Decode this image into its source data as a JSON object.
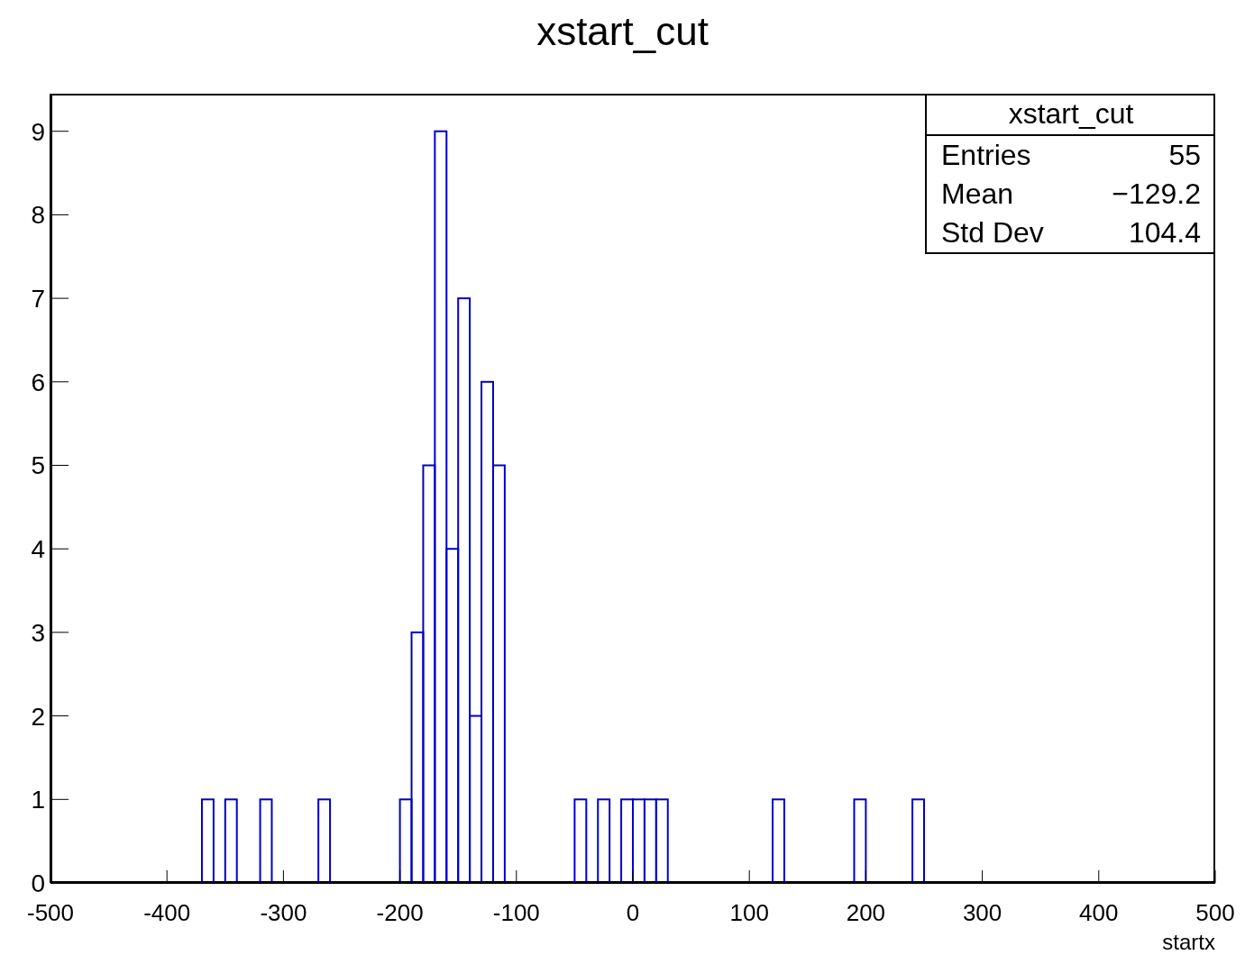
{
  "chart_data": {
    "type": "histogram",
    "title": "xstart_cut",
    "xlabel": "startx",
    "bins": [
      -500,
      -490,
      -480,
      -470,
      -460,
      -450,
      -440,
      -430,
      -420,
      -410,
      -400,
      -390,
      -380,
      -370,
      -360,
      -350,
      -340,
      -330,
      -320,
      -310,
      -300,
      -290,
      -280,
      -270,
      -260,
      -250,
      -240,
      -230,
      -220,
      -210,
      -200,
      -190,
      -180,
      -170,
      -160,
      -150,
      -140,
      -130,
      -120,
      -110,
      -100,
      -90,
      -80,
      -70,
      -60,
      -50,
      -40,
      -30,
      -20,
      -10,
      0,
      10,
      20,
      30,
      40,
      50,
      60,
      70,
      80,
      90,
      100,
      110,
      120,
      130,
      140,
      150,
      160,
      170,
      180,
      190,
      200,
      210,
      220,
      230,
      240,
      250,
      260,
      270,
      280,
      290,
      300,
      310,
      320,
      330,
      340,
      350,
      360,
      370,
      380,
      390,
      400,
      410,
      420,
      430,
      440,
      450,
      460,
      470,
      480,
      490,
      500
    ],
    "values": [
      0,
      0,
      0,
      0,
      0,
      0,
      0,
      0,
      0,
      0,
      0,
      0,
      0,
      1,
      0,
      1,
      0,
      0,
      1,
      0,
      0,
      0,
      0,
      1,
      0,
      0,
      0,
      0,
      0,
      0,
      1,
      3,
      5,
      9,
      4,
      7,
      2,
      6,
      5,
      0,
      0,
      0,
      0,
      0,
      0,
      1,
      0,
      1,
      0,
      1,
      1,
      1,
      1,
      0,
      0,
      0,
      0,
      0,
      0,
      0,
      0,
      0,
      1,
      0,
      0,
      0,
      0,
      0,
      0,
      1,
      0,
      0,
      0,
      0,
      1,
      0,
      0,
      0,
      0,
      0,
      0,
      0,
      0,
      0,
      0,
      0,
      0,
      0,
      0,
      0,
      0,
      0,
      0,
      0,
      0,
      0,
      0,
      0,
      0,
      0
    ],
    "color": "#0000cc",
    "xlim": [
      -500,
      500
    ],
    "xticks": [
      -500,
      -400,
      -300,
      -200,
      -100,
      0,
      100,
      200,
      300,
      400,
      500
    ],
    "ylim": [
      0,
      9.45
    ],
    "yticks": [
      0,
      1,
      2,
      3,
      4,
      5,
      6,
      7,
      8,
      9
    ],
    "grid": false,
    "annotations": [
      "xstart_cut",
      "Entries",
      "55",
      "Mean",
      "−129.2",
      "Std Dev",
      "104.4"
    ]
  }
}
